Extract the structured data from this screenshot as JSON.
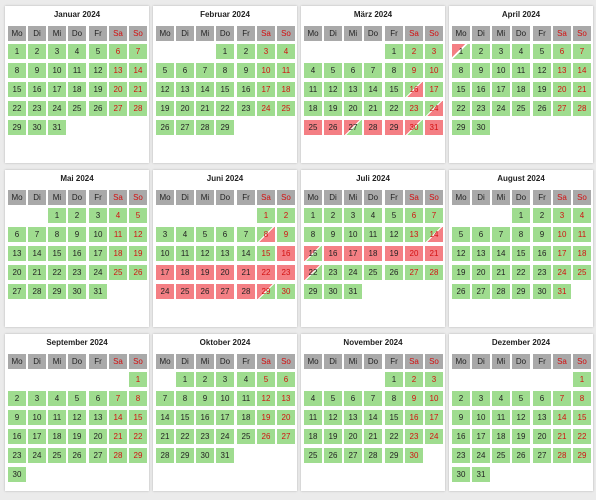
{
  "weekdays": [
    "Mo",
    "Di",
    "Mi",
    "Do",
    "Fr",
    "Sa",
    "So"
  ],
  "colors": {
    "free": "#9fdc8f",
    "booked": "#f47f84",
    "header": "#a9a9a9",
    "weekend_text": "#d21010"
  },
  "months": [
    {
      "title": "Januar 2024",
      "first_weekday": 0,
      "days": 31,
      "booked": [],
      "arrival": [],
      "departure": []
    },
    {
      "title": "Februar 2024",
      "first_weekday": 3,
      "days": 29,
      "booked": [],
      "arrival": [],
      "departure": []
    },
    {
      "title": "März 2024",
      "first_weekday": 4,
      "days": 31,
      "booked": [
        25,
        26,
        28,
        29,
        31
      ],
      "arrival": [
        16,
        24
      ],
      "departure": [
        27,
        30
      ]
    },
    {
      "title": "April 2024",
      "first_weekday": 0,
      "days": 30,
      "booked": [],
      "arrival": [],
      "departure": [
        1
      ]
    },
    {
      "title": "Mai 2024",
      "first_weekday": 2,
      "days": 31,
      "booked": [],
      "arrival": [],
      "departure": []
    },
    {
      "title": "Juni 2024",
      "first_weekday": 5,
      "days": 30,
      "booked": [
        16,
        17,
        18,
        19,
        20,
        21,
        22,
        23,
        24,
        25,
        26,
        27,
        28
      ],
      "arrival": [
        8
      ],
      "departure": [
        29
      ]
    },
    {
      "title": "Juli 2024",
      "first_weekday": 0,
      "days": 31,
      "booked": [
        16,
        17,
        18,
        19,
        20,
        21
      ],
      "arrival": [
        14
      ],
      "departure": [
        15,
        22
      ]
    },
    {
      "title": "August 2024",
      "first_weekday": 3,
      "days": 31,
      "booked": [],
      "arrival": [],
      "departure": []
    },
    {
      "title": "September 2024",
      "first_weekday": 6,
      "days": 30,
      "booked": [],
      "arrival": [],
      "departure": []
    },
    {
      "title": "Oktober 2024",
      "first_weekday": 1,
      "days": 31,
      "booked": [],
      "arrival": [],
      "departure": []
    },
    {
      "title": "November 2024",
      "first_weekday": 4,
      "days": 30,
      "booked": [],
      "arrival": [],
      "departure": []
    },
    {
      "title": "Dezember 2024",
      "first_weekday": 6,
      "days": 31,
      "booked": [],
      "arrival": [],
      "departure": []
    }
  ]
}
